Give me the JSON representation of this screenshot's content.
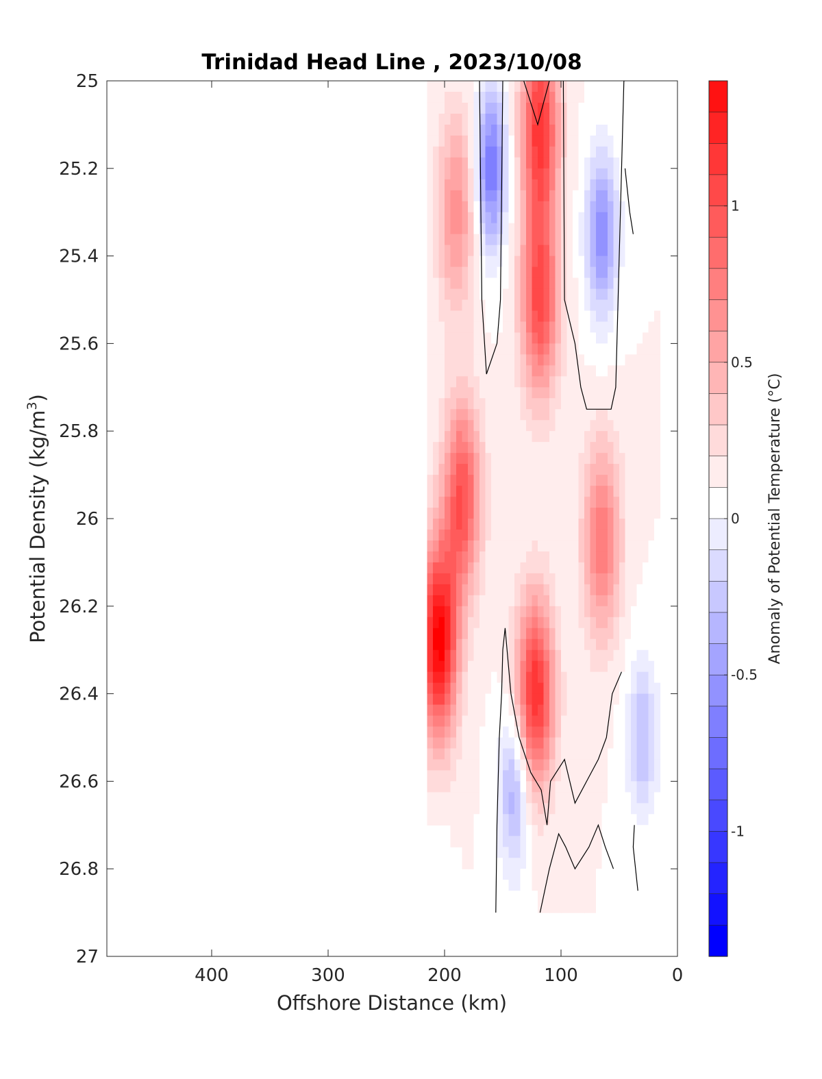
{
  "chart_data": {
    "type": "heatmap",
    "title": "Trinidad Head Line , 2023/10/08",
    "xlabel": "Offshore Distance (km)",
    "ylabel": "Potential Density (kg/m",
    "ylabel_superscript": "3",
    "ylabel_suffix": ")",
    "xlim": [
      490,
      0
    ],
    "ylim": [
      25,
      27
    ],
    "x_reversed": true,
    "y_reversed": true,
    "x_ticks": [
      400,
      300,
      200,
      100,
      0
    ],
    "y_ticks": [
      25,
      25.2,
      25.4,
      25.6,
      25.8,
      26,
      26.2,
      26.4,
      26.6,
      26.8,
      27
    ],
    "x_tick_labels": [
      "400",
      "300",
      "200",
      "100",
      "0"
    ],
    "y_tick_labels": [
      "25",
      "25.2",
      "25.4",
      "25.6",
      "25.8",
      "26",
      "26.2",
      "26.4",
      "26.6",
      "26.8",
      "27"
    ],
    "colorbar": {
      "label": "Anomaly of Potential Temperature (°C)",
      "range": [
        -1.4,
        1.4
      ],
      "step": 0.1,
      "ticks": [
        1,
        0.5,
        0,
        -0.5,
        -1
      ],
      "tick_labels": [
        "1",
        "0.5",
        "0",
        "-0.5",
        "-1"
      ],
      "colormap": "blue-white-red",
      "negative_color": "#0000ff",
      "zero_color": "#ffffff",
      "positive_color": "#ff0000"
    },
    "data_extent": {
      "x_columns_km": [
        210,
        200,
        190,
        180,
        170,
        160,
        150,
        140,
        130,
        120,
        110,
        100,
        90,
        80,
        70,
        60,
        50,
        40,
        30,
        20
      ],
      "deepest_density_by_column": [
        26.7,
        26.7,
        26.75,
        26.8,
        26.9,
        26.9,
        26.9,
        26.9,
        26.9,
        26.9,
        26.9,
        26.9,
        26.9,
        26.9,
        26.9,
        26.9,
        26.9,
        26.9,
        26.9,
        26.9
      ],
      "surface_density_by_column": [
        25,
        25,
        25,
        25,
        25,
        25,
        25,
        25,
        25,
        25,
        25,
        25,
        25,
        25,
        25,
        25,
        25,
        25.1,
        25.15,
        25.2
      ]
    },
    "features": [
      {
        "kind": "warm-core",
        "x_km": 205,
        "density": 26.28,
        "anomaly": 1.35
      },
      {
        "kind": "warm-core",
        "x_km": 185,
        "density": 25.95,
        "anomaly": 0.9
      },
      {
        "kind": "warm-core",
        "x_km": 190,
        "density": 25.3,
        "anomaly": 0.55
      },
      {
        "kind": "warm-core",
        "x_km": 122,
        "density": 26.4,
        "anomaly": 1.1
      },
      {
        "kind": "warm-core",
        "x_km": 118,
        "density": 25.5,
        "anomaly": 0.95
      },
      {
        "kind": "warm-core",
        "x_km": 118,
        "density": 25.1,
        "anomaly": 1.05
      },
      {
        "kind": "warm-core",
        "x_km": 65,
        "density": 26.05,
        "anomaly": 0.7
      },
      {
        "kind": "cold-core",
        "x_km": 160,
        "density": 25.2,
        "anomaly": -0.8
      },
      {
        "kind": "cold-core",
        "x_km": 65,
        "density": 25.35,
        "anomaly": -0.7
      },
      {
        "kind": "cold-core",
        "x_km": 140,
        "density": 26.62,
        "anomaly": -0.5
      },
      {
        "kind": "cold-core",
        "x_km": 30,
        "density": 26.5,
        "anomaly": -0.4
      }
    ]
  }
}
